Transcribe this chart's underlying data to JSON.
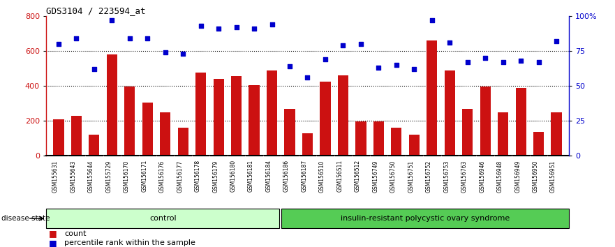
{
  "title": "GDS3104 / 223594_at",
  "samples": [
    "GSM155631",
    "GSM155643",
    "GSM155644",
    "GSM155729",
    "GSM156170",
    "GSM156171",
    "GSM156176",
    "GSM156177",
    "GSM156178",
    "GSM156179",
    "GSM156180",
    "GSM156181",
    "GSM156184",
    "GSM156186",
    "GSM156187",
    "GSM156510",
    "GSM156511",
    "GSM156512",
    "GSM156749",
    "GSM156750",
    "GSM156751",
    "GSM156752",
    "GSM156753",
    "GSM156763",
    "GSM156946",
    "GSM156948",
    "GSM156949",
    "GSM156950",
    "GSM156951"
  ],
  "counts": [
    210,
    230,
    120,
    580,
    395,
    305,
    248,
    160,
    475,
    440,
    455,
    405,
    490,
    270,
    130,
    425,
    460,
    195,
    195,
    160,
    120,
    660,
    490,
    270,
    395,
    250,
    390,
    135,
    248
  ],
  "percentiles": [
    80,
    84,
    62,
    97,
    84,
    84,
    74,
    73,
    93,
    91,
    92,
    91,
    94,
    64,
    56,
    69,
    79,
    80,
    63,
    65,
    62,
    97,
    81,
    67,
    70,
    67,
    68,
    67,
    82
  ],
  "control_count": 13,
  "group1_label": "control",
  "group2_label": "insulin-resistant polycystic ovary syndrome",
  "group1_color": "#ccffcc",
  "group2_color": "#55cc55",
  "bar_color": "#cc1111",
  "dot_color": "#0000cc",
  "ylim_left": [
    0,
    800
  ],
  "ylim_right": [
    0,
    100
  ],
  "yticks_left": [
    0,
    200,
    400,
    600,
    800
  ],
  "yticks_right": [
    0,
    25,
    50,
    75,
    100
  ],
  "ytick_labels_right": [
    "0",
    "25",
    "50",
    "75",
    "100%"
  ],
  "grid_values": [
    200,
    400,
    600
  ],
  "disease_state_label": "disease state",
  "legend_count_label": "count",
  "legend_pct_label": "percentile rank within the sample"
}
